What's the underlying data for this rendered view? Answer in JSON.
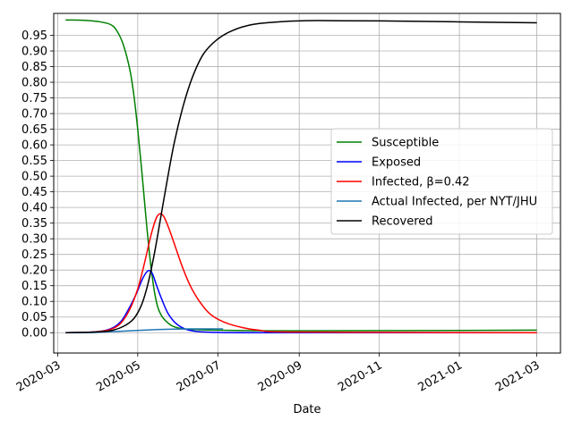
{
  "chart_data": {
    "type": "line",
    "title": "",
    "xlabel": "Date",
    "ylabel": "",
    "x_type": "date",
    "xlim": [
      "2020-02-27",
      "2021-03-19"
    ],
    "ylim": [
      -0.065,
      1.02
    ],
    "grid": true,
    "legend_position": "center-right",
    "x_ticks": [
      "2020-03",
      "2020-05",
      "2020-07",
      "2020-09",
      "2020-11",
      "2021-01",
      "2021-03"
    ],
    "y_ticks": [
      "0.00",
      "0.05",
      "0.10",
      "0.15",
      "0.20",
      "0.25",
      "0.30",
      "0.35",
      "0.40",
      "0.45",
      "0.50",
      "0.55",
      "0.60",
      "0.65",
      "0.70",
      "0.75",
      "0.80",
      "0.85",
      "0.90",
      "0.95"
    ],
    "series": [
      {
        "name": "Susceptible",
        "color": "#008000",
        "points": [
          [
            "2020-03-07",
            0.999
          ],
          [
            "2020-03-21",
            0.998
          ],
          [
            "2020-04-01",
            0.994
          ],
          [
            "2020-04-10",
            0.985
          ],
          [
            "2020-04-15",
            0.965
          ],
          [
            "2020-04-20",
            0.92
          ],
          [
            "2020-04-25",
            0.84
          ],
          [
            "2020-04-28",
            0.76
          ],
          [
            "2020-05-01",
            0.65
          ],
          [
            "2020-05-04",
            0.52
          ],
          [
            "2020-05-07",
            0.38
          ],
          [
            "2020-05-10",
            0.25
          ],
          [
            "2020-05-13",
            0.15
          ],
          [
            "2020-05-16",
            0.085
          ],
          [
            "2020-05-19",
            0.055
          ],
          [
            "2020-05-23",
            0.035
          ],
          [
            "2020-05-28",
            0.02
          ],
          [
            "2020-06-05",
            0.012
          ],
          [
            "2020-06-15",
            0.01
          ],
          [
            "2020-07-01",
            0.008
          ],
          [
            "2020-09-01",
            0.006
          ],
          [
            "2021-03-01",
            0.008
          ]
        ]
      },
      {
        "name": "Exposed",
        "color": "#0000ff",
        "points": [
          [
            "2020-03-07",
            0.0
          ],
          [
            "2020-03-28",
            0.002
          ],
          [
            "2020-04-10",
            0.012
          ],
          [
            "2020-04-18",
            0.035
          ],
          [
            "2020-04-24",
            0.075
          ],
          [
            "2020-04-30",
            0.125
          ],
          [
            "2020-05-05",
            0.175
          ],
          [
            "2020-05-09",
            0.198
          ],
          [
            "2020-05-12",
            0.19
          ],
          [
            "2020-05-15",
            0.155
          ],
          [
            "2020-05-19",
            0.11
          ],
          [
            "2020-05-24",
            0.062
          ],
          [
            "2020-05-30",
            0.03
          ],
          [
            "2020-06-06",
            0.012
          ],
          [
            "2020-06-15",
            0.004
          ],
          [
            "2020-07-01",
            0.001
          ],
          [
            "2020-08-01",
            0.0
          ],
          [
            "2021-03-01",
            0.0
          ]
        ]
      },
      {
        "name": "Infected, β=0.42",
        "color": "#ff0000",
        "points": [
          [
            "2020-03-07",
            0.0
          ],
          [
            "2020-03-28",
            0.002
          ],
          [
            "2020-04-10",
            0.01
          ],
          [
            "2020-04-18",
            0.03
          ],
          [
            "2020-04-25",
            0.075
          ],
          [
            "2020-05-01",
            0.14
          ],
          [
            "2020-05-06",
            0.22
          ],
          [
            "2020-05-11",
            0.31
          ],
          [
            "2020-05-15",
            0.365
          ],
          [
            "2020-05-18",
            0.38
          ],
          [
            "2020-05-21",
            0.37
          ],
          [
            "2020-05-25",
            0.33
          ],
          [
            "2020-05-30",
            0.27
          ],
          [
            "2020-06-04",
            0.21
          ],
          [
            "2020-06-10",
            0.15
          ],
          [
            "2020-06-17",
            0.1
          ],
          [
            "2020-06-25",
            0.06
          ],
          [
            "2020-07-05",
            0.035
          ],
          [
            "2020-07-18",
            0.018
          ],
          [
            "2020-08-01",
            0.008
          ],
          [
            "2020-09-01",
            0.002
          ],
          [
            "2021-03-01",
            0.0
          ]
        ]
      },
      {
        "name": "Actual Infected, per NYT/JHU",
        "color": "#1f77b4",
        "points": [
          [
            "2020-03-07",
            0.0
          ],
          [
            "2020-03-25",
            0.0
          ],
          [
            "2020-04-10",
            0.003
          ],
          [
            "2020-04-25",
            0.006
          ],
          [
            "2020-05-10",
            0.009
          ],
          [
            "2020-05-25",
            0.011
          ],
          [
            "2020-06-10",
            0.012
          ],
          [
            "2020-07-05",
            0.012
          ]
        ]
      },
      {
        "name": "Recovered",
        "color": "#000000",
        "points": [
          [
            "2020-03-07",
            0.0
          ],
          [
            "2020-03-28",
            0.002
          ],
          [
            "2020-04-10",
            0.006
          ],
          [
            "2020-04-20",
            0.02
          ],
          [
            "2020-04-28",
            0.045
          ],
          [
            "2020-05-04",
            0.09
          ],
          [
            "2020-05-09",
            0.16
          ],
          [
            "2020-05-14",
            0.26
          ],
          [
            "2020-05-19",
            0.38
          ],
          [
            "2020-05-24",
            0.5
          ],
          [
            "2020-05-29",
            0.61
          ],
          [
            "2020-06-05",
            0.73
          ],
          [
            "2020-06-12",
            0.82
          ],
          [
            "2020-06-20",
            0.89
          ],
          [
            "2020-06-30",
            0.935
          ],
          [
            "2020-07-12",
            0.965
          ],
          [
            "2020-07-28",
            0.985
          ],
          [
            "2020-08-20",
            0.994
          ],
          [
            "2020-09-15",
            0.997
          ],
          [
            "2020-11-01",
            0.996
          ],
          [
            "2021-01-01",
            0.993
          ],
          [
            "2021-03-01",
            0.99
          ]
        ]
      }
    ]
  }
}
